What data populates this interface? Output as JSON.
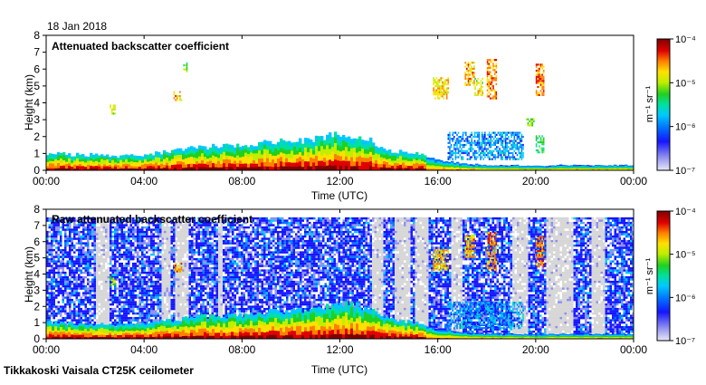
{
  "date": "18 Jan 2018",
  "footer": "Tikkakoski Vaisala CT25K ceilometer",
  "colorbar_unit": "m⁻¹ sr⁻¹",
  "chart_data": [
    {
      "type": "heatmap",
      "title": "Attenuated backscatter coefficient",
      "xlabel": "Time (UTC)",
      "ylabel": "Height (km)",
      "x_ticks": [
        "00:00",
        "04:00",
        "08:00",
        "12:00",
        "16:00",
        "20:00",
        "00:00"
      ],
      "y_ticks": [
        "0",
        "1",
        "2",
        "3",
        "4",
        "5",
        "6",
        "7",
        "8"
      ],
      "xlim": [
        0,
        24
      ],
      "ylim": [
        0,
        8
      ],
      "colorbar": {
        "ticks": [
          "10⁻⁷",
          "10⁻⁶",
          "10⁻⁵",
          "10⁻⁴"
        ],
        "scale": "log",
        "range": [
          1e-07,
          0.0001
        ]
      },
      "noise_background": false,
      "boundary_layer_top_km": [
        [
          0,
          1.0
        ],
        [
          1,
          0.9
        ],
        [
          2,
          0.9
        ],
        [
          3,
          0.8
        ],
        [
          4,
          0.9
        ],
        [
          5,
          1.1
        ],
        [
          6,
          1.3
        ],
        [
          7,
          1.4
        ],
        [
          8,
          1.4
        ],
        [
          9,
          1.6
        ],
        [
          10,
          1.7
        ],
        [
          11,
          1.8
        ],
        [
          12,
          2.1
        ],
        [
          13,
          1.9
        ],
        [
          13.8,
          1.2
        ],
        [
          15,
          1.0
        ],
        [
          16,
          0.6
        ],
        [
          17,
          0.4
        ],
        [
          18,
          0.3
        ],
        [
          19,
          0.3
        ],
        [
          20,
          0.25
        ],
        [
          21,
          0.3
        ],
        [
          22,
          0.3
        ],
        [
          23,
          0.3
        ],
        [
          24,
          0.3
        ]
      ],
      "cloud_features": [
        {
          "start": 2.6,
          "end": 2.8,
          "base_km": 3.3,
          "top_km": 3.8,
          "level": 0.62
        },
        {
          "start": 5.2,
          "end": 5.55,
          "base_km": 4.1,
          "top_km": 4.7,
          "level": 0.75
        },
        {
          "start": 5.6,
          "end": 5.75,
          "base_km": 5.8,
          "top_km": 6.3,
          "level": 0.55
        },
        {
          "start": 15.8,
          "end": 16.4,
          "base_km": 4.2,
          "top_km": 5.5,
          "level": 0.72
        },
        {
          "start": 17.1,
          "end": 17.5,
          "base_km": 5.0,
          "top_km": 6.4,
          "level": 0.74
        },
        {
          "start": 17.5,
          "end": 17.8,
          "base_km": 4.4,
          "top_km": 5.4,
          "level": 0.66
        },
        {
          "start": 18.0,
          "end": 18.4,
          "base_km": 4.2,
          "top_km": 6.5,
          "level": 0.78
        },
        {
          "start": 19.6,
          "end": 19.9,
          "base_km": 2.6,
          "top_km": 3.0,
          "level": 0.6
        },
        {
          "start": 20.0,
          "end": 20.3,
          "base_km": 4.4,
          "top_km": 6.3,
          "level": 0.8
        },
        {
          "start": 20.0,
          "end": 20.3,
          "base_km": 1.0,
          "top_km": 2.0,
          "level": 0.5
        },
        {
          "start": 16.4,
          "end": 19.5,
          "base_km": 0.6,
          "top_km": 2.2,
          "level": 0.32
        }
      ]
    },
    {
      "type": "heatmap",
      "title": "Raw attenuated backscatter coefficient",
      "xlabel": "Time (UTC)",
      "ylabel": "Height (km)",
      "x_ticks": [
        "00:00",
        "04:00",
        "08:00",
        "12:00",
        "16:00",
        "20:00",
        "00:00"
      ],
      "y_ticks": [
        "0",
        "1",
        "2",
        "3",
        "4",
        "5",
        "6",
        "7",
        "8"
      ],
      "xlim": [
        0,
        24
      ],
      "ylim": [
        0,
        8
      ],
      "colorbar": {
        "ticks": [
          "10⁻⁷",
          "10⁻⁶",
          "10⁻⁵",
          "10⁻⁴"
        ],
        "scale": "log",
        "range": [
          1e-07,
          0.0001
        ]
      },
      "noise_background": true,
      "noise_top_km": 7.5,
      "low_signal_periods": [
        [
          2.0,
          2.5
        ],
        [
          4.7,
          5.0
        ],
        [
          5.2,
          5.8
        ],
        [
          7.0,
          7.2
        ],
        [
          13.3,
          13.7
        ],
        [
          14.2,
          14.8
        ],
        [
          15.0,
          15.6
        ],
        [
          16.5,
          17.0
        ],
        [
          19.0,
          19.6
        ],
        [
          20.4,
          21.5
        ],
        [
          22.2,
          22.8
        ]
      ],
      "boundary_layer_top_km": [
        [
          0,
          1.0
        ],
        [
          1,
          0.9
        ],
        [
          2,
          0.9
        ],
        [
          3,
          0.8
        ],
        [
          4,
          0.9
        ],
        [
          5,
          1.1
        ],
        [
          6,
          1.3
        ],
        [
          7,
          1.4
        ],
        [
          8,
          1.4
        ],
        [
          9,
          1.6
        ],
        [
          10,
          1.7
        ],
        [
          11,
          1.8
        ],
        [
          12,
          2.1
        ],
        [
          13,
          1.9
        ],
        [
          13.8,
          1.2
        ],
        [
          15,
          1.0
        ],
        [
          16,
          0.6
        ],
        [
          17,
          0.4
        ],
        [
          18,
          0.3
        ],
        [
          19,
          0.3
        ],
        [
          20,
          0.25
        ],
        [
          21,
          0.3
        ],
        [
          22,
          0.3
        ],
        [
          23,
          0.3
        ],
        [
          24,
          0.3
        ]
      ],
      "cloud_features": [
        {
          "start": 2.6,
          "end": 2.8,
          "base_km": 3.3,
          "top_km": 3.8,
          "level": 0.62
        },
        {
          "start": 5.2,
          "end": 5.55,
          "base_km": 4.1,
          "top_km": 4.7,
          "level": 0.75
        },
        {
          "start": 15.8,
          "end": 16.4,
          "base_km": 4.2,
          "top_km": 5.5,
          "level": 0.72
        },
        {
          "start": 17.1,
          "end": 17.5,
          "base_km": 5.0,
          "top_km": 6.4,
          "level": 0.74
        },
        {
          "start": 18.0,
          "end": 18.4,
          "base_km": 4.2,
          "top_km": 6.5,
          "level": 0.78
        },
        {
          "start": 20.0,
          "end": 20.3,
          "base_km": 4.4,
          "top_km": 6.3,
          "level": 0.8
        },
        {
          "start": 16.4,
          "end": 19.5,
          "base_km": 0.6,
          "top_km": 2.2,
          "level": 0.32
        }
      ]
    }
  ]
}
